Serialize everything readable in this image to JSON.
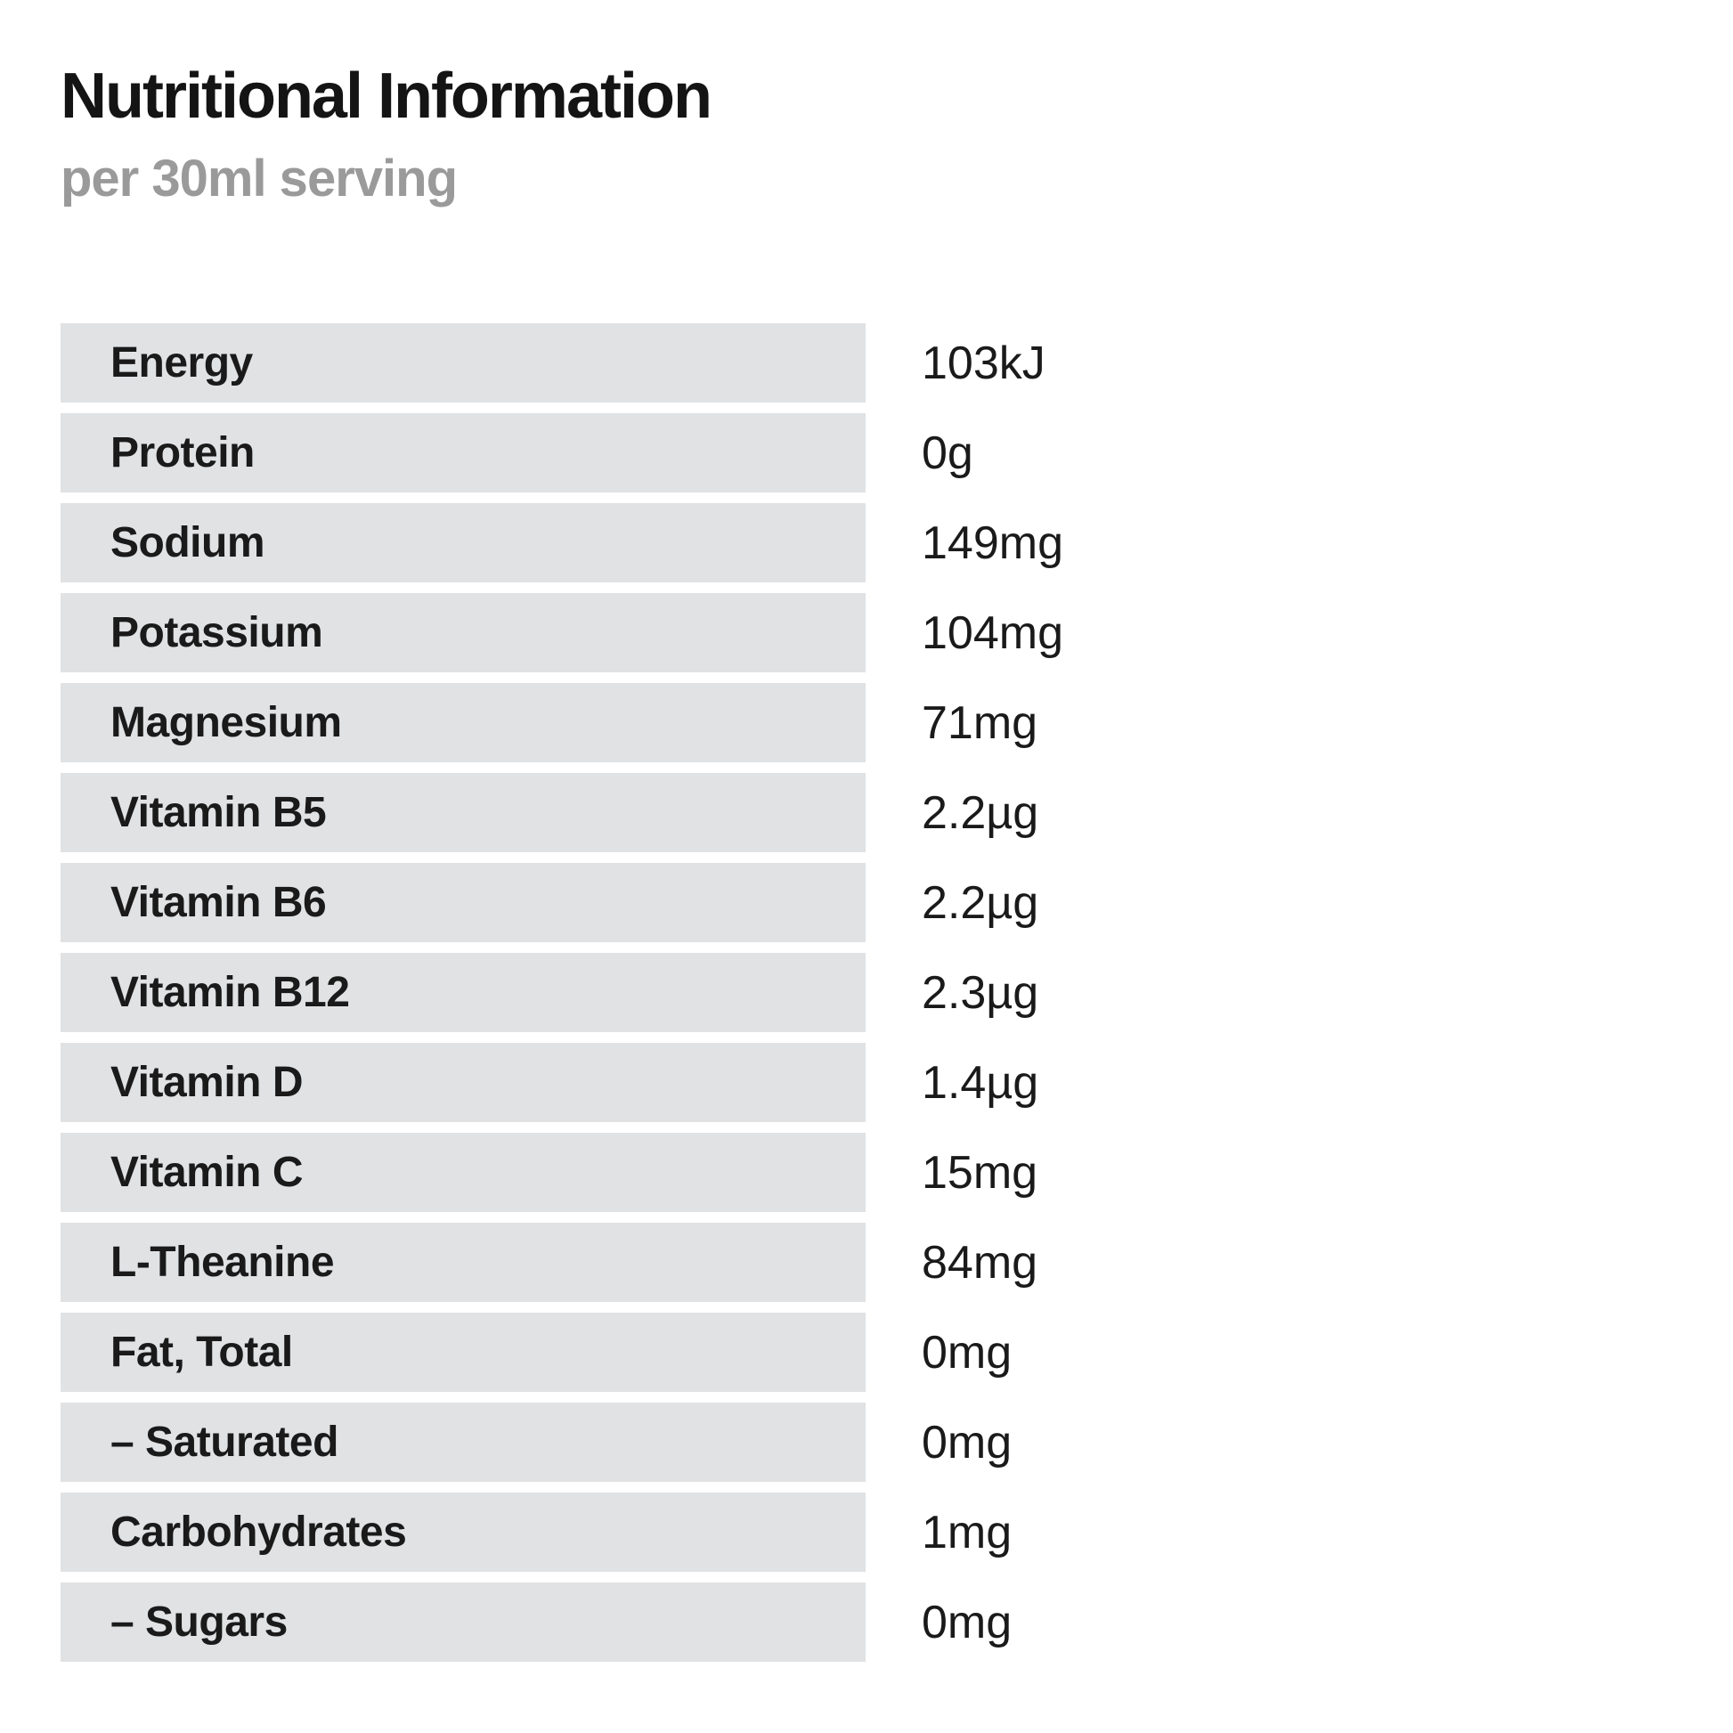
{
  "page": {
    "title": "Nutritional Information",
    "subtitle": "per 30ml serving"
  },
  "table": {
    "rows": [
      {
        "label": "Energy",
        "value": "103kJ"
      },
      {
        "label": "Protein",
        "value": "0g"
      },
      {
        "label": "Sodium",
        "value": "149mg"
      },
      {
        "label": "Potassium",
        "value": "104mg"
      },
      {
        "label": "Magnesium",
        "value": "71mg"
      },
      {
        "label": "Vitamin B5",
        "value": "2.2µg"
      },
      {
        "label": "Vitamin B6",
        "value": "2.2µg"
      },
      {
        "label": "Vitamin B12",
        "value": "2.3µg"
      },
      {
        "label": "Vitamin D",
        "value": "1.4µg"
      },
      {
        "label": "Vitamin C",
        "value": "15mg"
      },
      {
        "label": "L-Theanine",
        "value": "84mg"
      },
      {
        "label": "Fat, Total",
        "value": "0mg"
      },
      {
        "label": "– Saturated",
        "value": "0mg"
      },
      {
        "label": "Carbohydrates",
        "value": "1mg"
      },
      {
        "label": "– Sugars",
        "value": "0mg"
      }
    ]
  },
  "colors": {
    "row_bar": "#e0e2e4",
    "subtitle_gray": "#9a9a9a",
    "text": "#1a1a1a",
    "background": "#ffffff"
  }
}
